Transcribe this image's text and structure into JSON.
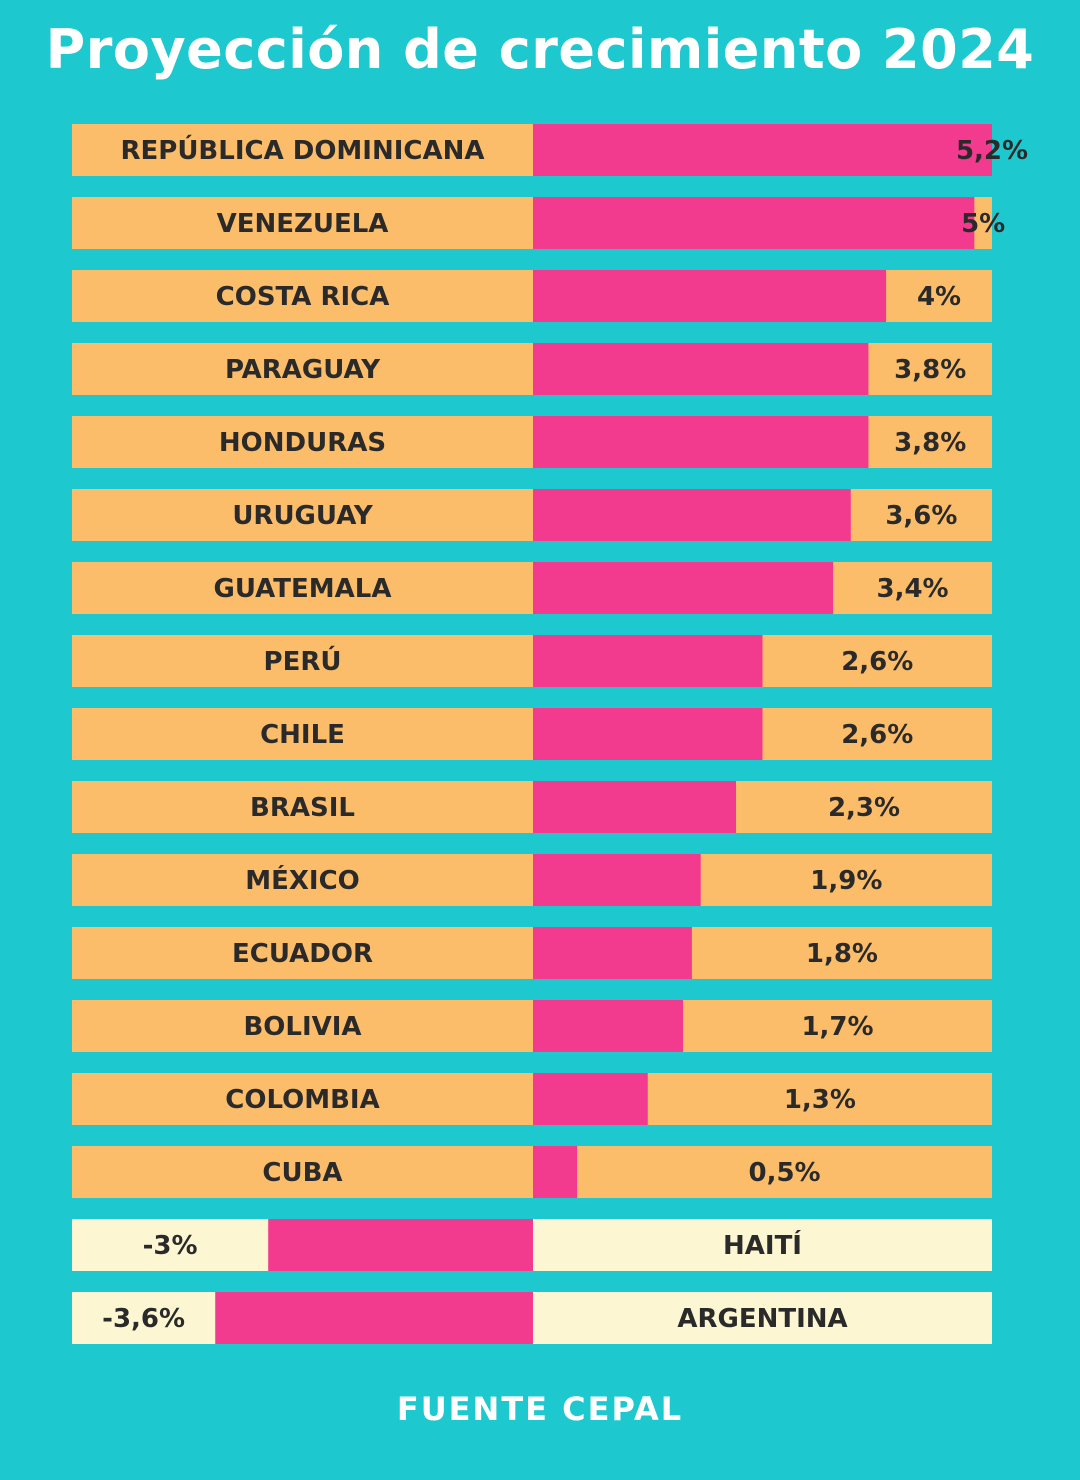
{
  "colors": {
    "background": "#1ec8cf",
    "positive_row": "#fbbd6a",
    "negative_row": "#fdf6d2",
    "bar": "#f23a8e",
    "text": "#2a2a2a",
    "title": "#ffffff"
  },
  "chart_data": {
    "type": "bar",
    "orientation": "horizontal",
    "title": "Proyección de crecimiento 2024",
    "source": "FUENTE CEPAL",
    "categories": [
      "REPÚBLICA DOMINICANA",
      "VENEZUELA",
      "COSTA RICA",
      "PARAGUAY",
      "HONDURAS",
      "URUGUAY",
      "GUATEMALA",
      "PERÚ",
      "CHILE",
      "BRASIL",
      "MÉXICO",
      "ECUADOR",
      "BOLIVIA",
      "COLOMBIA",
      "CUBA",
      "HAITÍ",
      "ARGENTINA"
    ],
    "values": [
      5.2,
      5,
      4,
      3.8,
      3.8,
      3.6,
      3.4,
      2.6,
      2.6,
      2.3,
      1.9,
      1.8,
      1.7,
      1.3,
      0.5,
      -3,
      -3.6
    ],
    "value_labels": [
      "5,2%",
      "5%",
      "4%",
      "3,8%",
      "3,8%",
      "3,6%",
      "3,4%",
      "2,6%",
      "2,6%",
      "2,3%",
      "1,9%",
      "1,8%",
      "1,7%",
      "1,3%",
      "0,5%",
      "-3%",
      "-3,6%"
    ],
    "unit": "%",
    "xlim": [
      -5.2,
      5.2
    ],
    "grid": false,
    "legend": "none"
  }
}
